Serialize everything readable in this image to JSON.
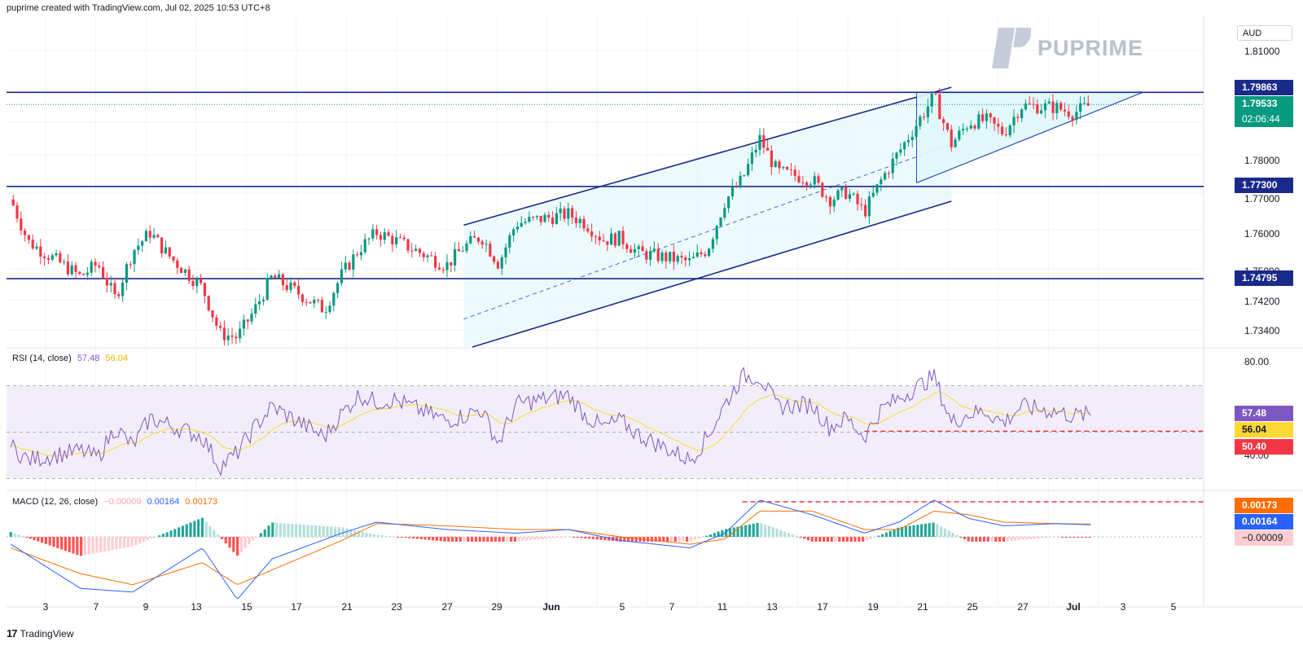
{
  "header": {
    "attribution": "puprime created with TradingView.com, Jul 02, 2025 10:53 UTC+8"
  },
  "currency": "AUD",
  "logo": {
    "text": "PUPRIME"
  },
  "colors": {
    "up": "#089981",
    "down": "#f23645",
    "levels": "#1a2a8a",
    "channel_fill": "#e0f7fa",
    "rsi_line": "#7e57c2",
    "rsi_ma": "#fdd835",
    "macd_line": "#2962ff",
    "signal_line": "#ff6d00",
    "hist_up_strong": "#26a69a",
    "hist_up_weak": "#b2dfdb",
    "hist_down_strong": "#ff5252",
    "hist_down_weak": "#ffcdd2"
  },
  "price_axis": {
    "ticks": [
      "1.81000",
      "1.78000",
      "1.77000",
      "1.76000",
      "1.75000",
      "1.74200",
      "1.73400"
    ]
  },
  "price_tags": {
    "level_top": "1.79863",
    "last_price": "1.79533",
    "countdown": "02:06:44",
    "level_mid": "1.77300",
    "level_bottom": "1.74795"
  },
  "rsi": {
    "label": "RSI (14, close)",
    "value": "57.48",
    "ma_value": "56.04",
    "axis": [
      "80.00",
      "40.00"
    ],
    "tags": {
      "rsi": "57.48",
      "ma": "56.04",
      "support": "50.40"
    }
  },
  "macd": {
    "label": "MACD (12, 26, close)",
    "hist": "−0.00009",
    "macd": "0.00164",
    "signal": "0.00173",
    "tags": {
      "signal": "0.00173",
      "macd": "0.00164",
      "hist": "−0.00009"
    }
  },
  "time_axis": {
    "labels": [
      "3",
      "7",
      "9",
      "13",
      "15",
      "17",
      "21",
      "23",
      "27",
      "29",
      "Jun",
      "5",
      "7",
      "11",
      "13",
      "17",
      "19",
      "21",
      "25",
      "27",
      "Jul",
      "3",
      "5"
    ]
  },
  "footer": {
    "brand": "TradingView"
  },
  "chart_data": {
    "type": "candlestick",
    "symbol_quote_currency": "AUD",
    "price_range": [
      1.728,
      1.818
    ],
    "horizontal_levels": [
      1.79863,
      1.773,
      1.74795
    ],
    "last_price": 1.79533,
    "channel": {
      "upper": [
        [
          "2025-05-27",
          1.7625
        ],
        [
          "2025-06-24",
          1.8
        ]
      ],
      "lower": [
        [
          "2025-05-27",
          1.726
        ],
        [
          "2025-06-24",
          1.769
        ]
      ]
    },
    "triangle": {
      "top": 1.79863,
      "apex_date": "2025-07-05",
      "base_low": 1.774
    },
    "close_path": [
      [
        "2025-05-01",
        1.7695
      ],
      [
        "2025-05-02",
        1.758
      ],
      [
        "2025-05-05",
        1.7485
      ],
      [
        "2025-05-06",
        1.752
      ],
      [
        "2025-05-07",
        1.7425
      ],
      [
        "2025-05-08",
        1.7555
      ],
      [
        "2025-05-09",
        1.7605
      ],
      [
        "2025-05-10",
        1.7545
      ],
      [
        "2025-05-12",
        1.7455
      ],
      [
        "2025-05-13",
        1.733
      ],
      [
        "2025-05-14",
        1.732
      ],
      [
        "2025-05-15",
        1.7395
      ],
      [
        "2025-05-16",
        1.7485
      ],
      [
        "2025-05-19",
        1.7395
      ],
      [
        "2025-05-20",
        1.749
      ],
      [
        "2025-05-21",
        1.756
      ],
      [
        "2025-05-22",
        1.7605
      ],
      [
        "2025-05-23",
        1.7585
      ],
      [
        "2025-05-26",
        1.7515
      ],
      [
        "2025-05-27",
        1.7565
      ],
      [
        "2025-05-28",
        1.7595
      ],
      [
        "2025-05-29",
        1.752
      ],
      [
        "2025-05-30",
        1.763
      ],
      [
        "2025-06-02",
        1.7655
      ],
      [
        "2025-06-03",
        1.763
      ],
      [
        "2025-06-04",
        1.7585
      ],
      [
        "2025-06-05",
        1.759
      ],
      [
        "2025-06-06",
        1.755
      ],
      [
        "2025-06-09",
        1.7525
      ],
      [
        "2025-06-10",
        1.756
      ],
      [
        "2025-06-11",
        1.769
      ],
      [
        "2025-06-12",
        1.775
      ],
      [
        "2025-06-13",
        1.786
      ],
      [
        "2025-06-14",
        1.777
      ],
      [
        "2025-06-16",
        1.775
      ],
      [
        "2025-06-17",
        1.7695
      ],
      [
        "2025-06-18",
        1.7715
      ],
      [
        "2025-06-19",
        1.766
      ],
      [
        "2025-06-20",
        1.775
      ],
      [
        "2025-06-23",
        1.7975
      ],
      [
        "2025-06-24",
        1.7845
      ],
      [
        "2025-06-25",
        1.7905
      ],
      [
        "2025-06-26",
        1.791
      ],
      [
        "2025-06-27",
        1.7875
      ],
      [
        "2025-06-28",
        1.795
      ],
      [
        "2025-06-30",
        1.7945
      ],
      [
        "2025-07-01",
        1.793
      ],
      [
        "2025-07-02",
        1.7953
      ]
    ],
    "rsi_range": [
      30,
      80
    ],
    "rsi_bands": [
      30,
      70
    ],
    "rsi_support": 50.4,
    "rsi_path": [
      [
        "2025-05-01",
        44
      ],
      [
        "2025-05-02",
        38
      ],
      [
        "2025-05-05",
        42
      ],
      [
        "2025-05-06",
        39
      ],
      [
        "2025-05-07",
        52
      ],
      [
        "2025-05-08",
        44
      ],
      [
        "2025-05-09",
        56
      ],
      [
        "2025-05-12",
        48
      ],
      [
        "2025-05-13",
        35
      ],
      [
        "2025-05-14",
        41
      ],
      [
        "2025-05-15",
        52
      ],
      [
        "2025-05-16",
        61
      ],
      [
        "2025-05-19",
        48
      ],
      [
        "2025-05-20",
        58
      ],
      [
        "2025-05-21",
        66
      ],
      [
        "2025-05-22",
        63
      ],
      [
        "2025-05-23",
        64
      ],
      [
        "2025-05-26",
        55
      ],
      [
        "2025-05-27",
        57
      ],
      [
        "2025-05-28",
        60
      ],
      [
        "2025-05-29",
        45
      ],
      [
        "2025-05-30",
        62
      ],
      [
        "2025-06-02",
        66
      ],
      [
        "2025-06-03",
        57
      ],
      [
        "2025-06-04",
        52
      ],
      [
        "2025-06-05",
        55
      ],
      [
        "2025-06-06",
        49
      ],
      [
        "2025-06-09",
        38
      ],
      [
        "2025-06-10",
        48
      ],
      [
        "2025-06-11",
        62
      ],
      [
        "2025-06-12",
        74
      ],
      [
        "2025-06-13",
        74
      ],
      [
        "2025-06-14",
        61
      ],
      [
        "2025-06-16",
        62
      ],
      [
        "2025-06-17",
        52
      ],
      [
        "2025-06-18",
        56
      ],
      [
        "2025-06-19",
        48
      ],
      [
        "2025-06-20",
        60
      ],
      [
        "2025-06-23",
        74
      ],
      [
        "2025-06-24",
        54
      ],
      [
        "2025-06-25",
        58
      ],
      [
        "2025-06-26",
        59
      ],
      [
        "2025-06-27",
        54
      ],
      [
        "2025-06-28",
        61
      ],
      [
        "2025-06-30",
        59
      ],
      [
        "2025-07-01",
        57
      ],
      [
        "2025-07-02",
        57.48
      ]
    ],
    "macd_range": [
      -0.0115,
      0.0052
    ],
    "macd_signal_reference": 0.00173,
    "macd_line": [
      [
        "2025-05-01",
        -0.001
      ],
      [
        "2025-05-05",
        -0.007
      ],
      [
        "2025-05-08",
        -0.0075
      ],
      [
        "2025-05-12",
        -0.0015
      ],
      [
        "2025-05-14",
        -0.0085
      ],
      [
        "2025-05-16",
        -0.003
      ],
      [
        "2025-05-20",
        0.0005
      ],
      [
        "2025-05-22",
        0.002
      ],
      [
        "2025-05-26",
        0.001
      ],
      [
        "2025-05-30",
        0.0005
      ],
      [
        "2025-06-02",
        0.001
      ],
      [
        "2025-06-05",
        -0.0005
      ],
      [
        "2025-06-09",
        -0.0015
      ],
      [
        "2025-06-11",
        0.0005
      ],
      [
        "2025-06-13",
        0.005
      ],
      [
        "2025-06-16",
        0.003
      ],
      [
        "2025-06-19",
        0.0005
      ],
      [
        "2025-06-21",
        0.002
      ],
      [
        "2025-06-23",
        0.005
      ],
      [
        "2025-06-25",
        0.0025
      ],
      [
        "2025-06-27",
        0.0015
      ],
      [
        "2025-06-30",
        0.0018
      ],
      [
        "2025-07-02",
        0.00164
      ]
    ],
    "signal_line": [
      [
        "2025-05-01",
        -0.0015
      ],
      [
        "2025-05-05",
        -0.005
      ],
      [
        "2025-05-08",
        -0.0065
      ],
      [
        "2025-05-12",
        -0.0035
      ],
      [
        "2025-05-14",
        -0.0065
      ],
      [
        "2025-05-16",
        -0.0045
      ],
      [
        "2025-05-20",
        -0.0005
      ],
      [
        "2025-05-22",
        0.0018
      ],
      [
        "2025-05-26",
        0.0015
      ],
      [
        "2025-05-30",
        0.001
      ],
      [
        "2025-06-02",
        0.001
      ],
      [
        "2025-06-05",
        0.0
      ],
      [
        "2025-06-09",
        -0.001
      ],
      [
        "2025-06-11",
        -0.0003
      ],
      [
        "2025-06-13",
        0.0035
      ],
      [
        "2025-06-16",
        0.0035
      ],
      [
        "2025-06-19",
        0.001
      ],
      [
        "2025-06-21",
        0.001
      ],
      [
        "2025-06-23",
        0.0035
      ],
      [
        "2025-06-25",
        0.003
      ],
      [
        "2025-06-27",
        0.002
      ],
      [
        "2025-06-30",
        0.0018
      ],
      [
        "2025-07-02",
        0.00173
      ]
    ]
  }
}
